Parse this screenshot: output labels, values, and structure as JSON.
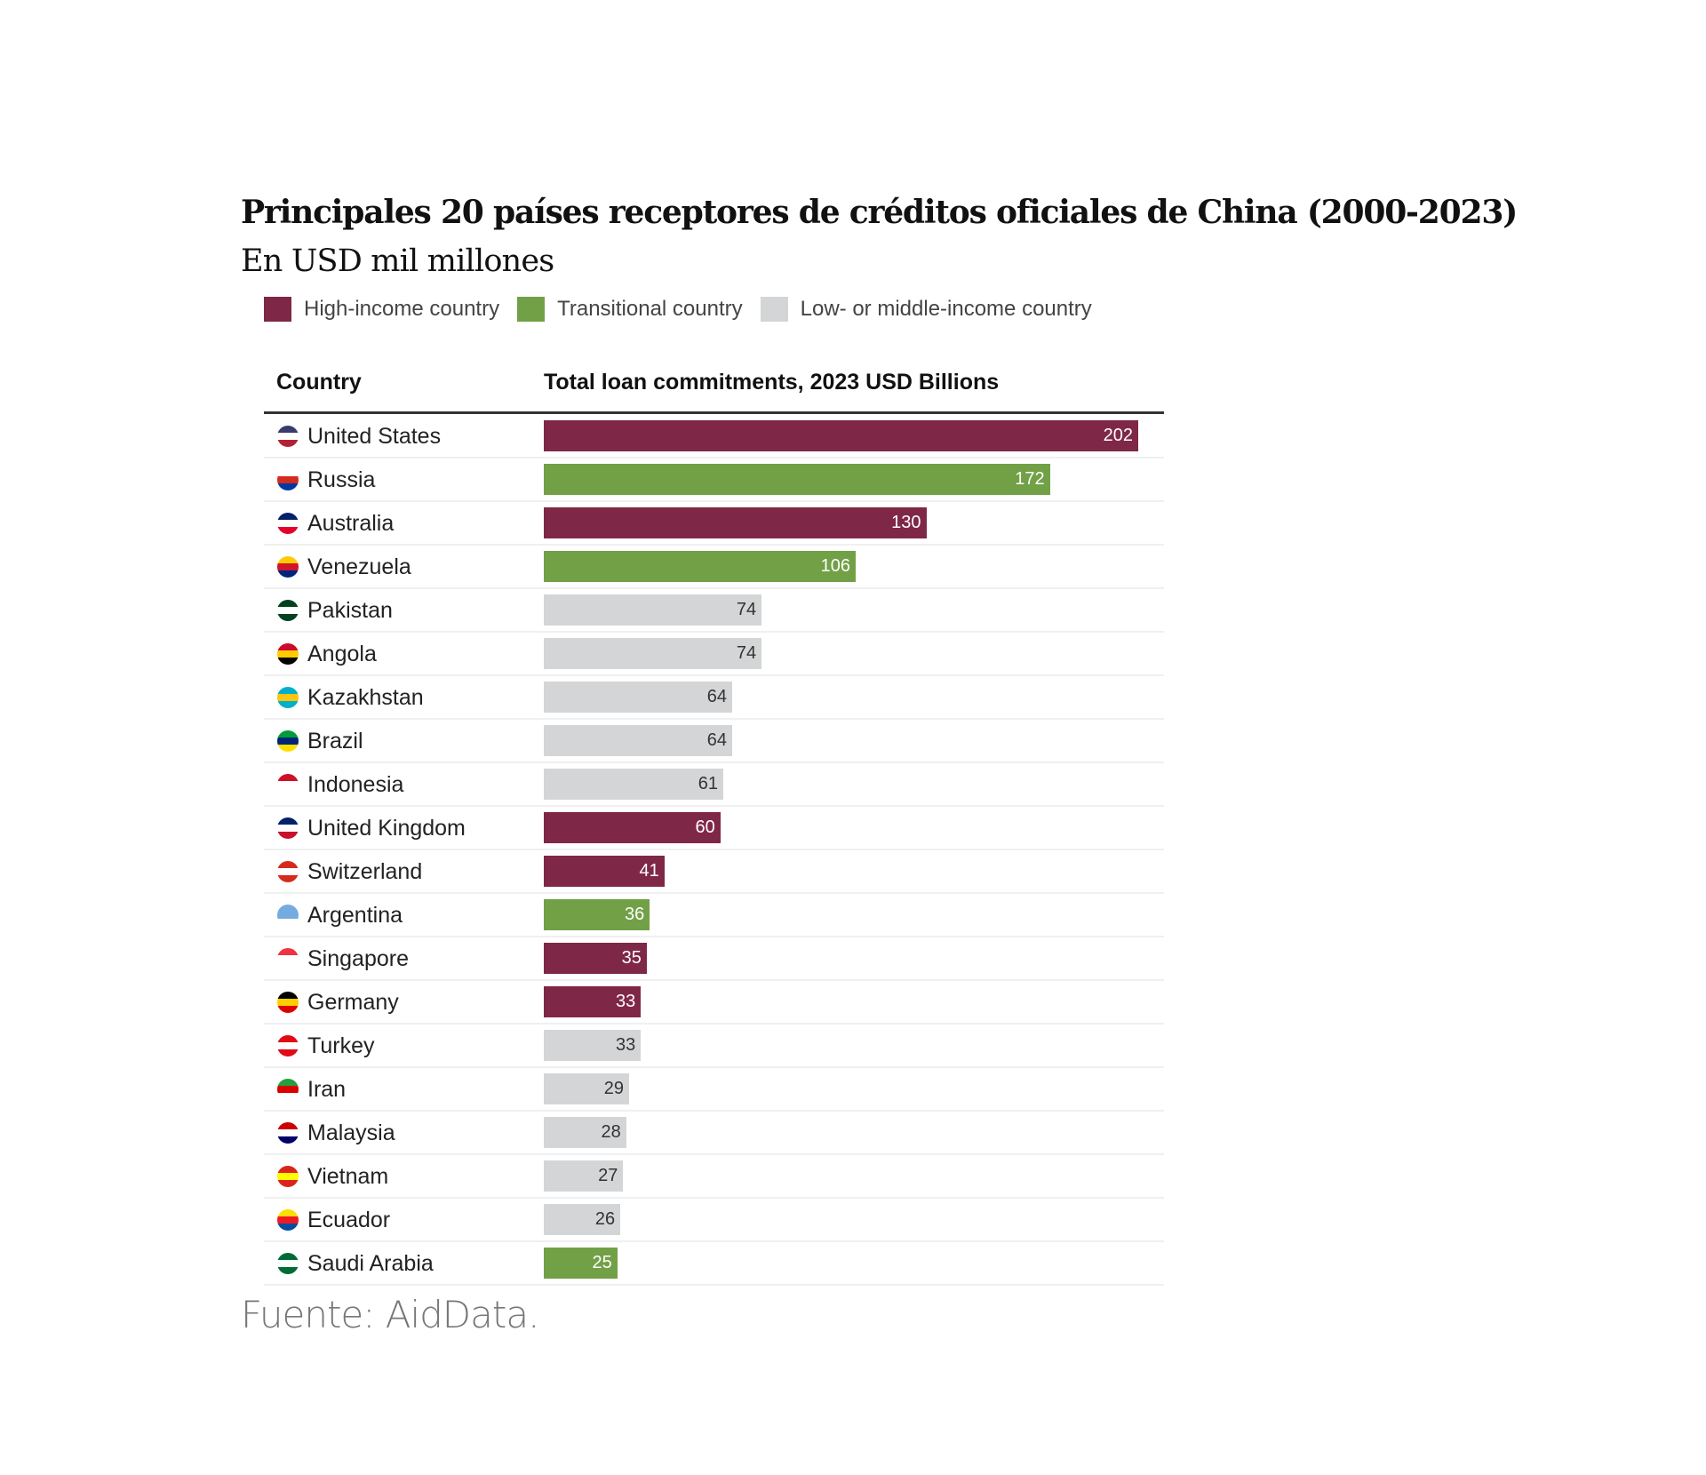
{
  "chart_data": {
    "type": "bar",
    "orientation": "horizontal",
    "title": "Principales 20 países receptores de créditos oficiales de China (2000-2023)",
    "subtitle": "En USD mil millones",
    "column_headers": {
      "country": "Country",
      "value": "Total loan commitments, 2023 USD Billions"
    },
    "legend": [
      {
        "key": "high",
        "label": "High-income country",
        "color": "#7f2747"
      },
      {
        "key": "transitional",
        "label": "Transitional country",
        "color": "#72a046"
      },
      {
        "key": "low",
        "label": "Low- or middle-income country",
        "color": "#d4d5d6"
      }
    ],
    "legend_position": "top-left",
    "grid": false,
    "xlim": [
      0,
      202
    ],
    "categories": [
      "United States",
      "Russia",
      "Australia",
      "Venezuela",
      "Pakistan",
      "Angola",
      "Kazakhstan",
      "Brazil",
      "Indonesia",
      "United Kingdom",
      "Switzerland",
      "Argentina",
      "Singapore",
      "Germany",
      "Turkey",
      "Iran",
      "Malaysia",
      "Vietnam",
      "Ecuador",
      "Saudi Arabia"
    ],
    "values": [
      202,
      172,
      130,
      106,
      74,
      74,
      64,
      64,
      61,
      60,
      41,
      36,
      35,
      33,
      33,
      29,
      28,
      27,
      26,
      25
    ],
    "groups": [
      "high",
      "transitional",
      "high",
      "transitional",
      "low",
      "low",
      "low",
      "low",
      "low",
      "high",
      "high",
      "transitional",
      "high",
      "high",
      "low",
      "low",
      "low",
      "low",
      "low",
      "transitional"
    ],
    "flag_colors": [
      [
        "#3c3b6e",
        "#b22234",
        "#ffffff"
      ],
      [
        "#ffffff",
        "#0039a6",
        "#d52b1e"
      ],
      [
        "#012169",
        "#e4002b",
        "#ffffff"
      ],
      [
        "#ffcc00",
        "#00247d",
        "#cf142b"
      ],
      [
        "#01411c",
        "#01411c",
        "#ffffff"
      ],
      [
        "#cc092f",
        "#000000",
        "#ffcb00"
      ],
      [
        "#00afca",
        "#00afca",
        "#fec50c"
      ],
      [
        "#009c3b",
        "#ffdf00",
        "#002776"
      ],
      [
        "#ce1126",
        "#ffffff",
        "#ffffff"
      ],
      [
        "#012169",
        "#c8102e",
        "#ffffff"
      ],
      [
        "#d52b1e",
        "#d52b1e",
        "#ffffff"
      ],
      [
        "#74acdf",
        "#ffffff",
        "#74acdf"
      ],
      [
        "#ef3340",
        "#ffffff",
        "#ffffff"
      ],
      [
        "#000000",
        "#dd0000",
        "#ffce00"
      ],
      [
        "#e30a17",
        "#e30a17",
        "#ffffff"
      ],
      [
        "#239f40",
        "#ffffff",
        "#da0000"
      ],
      [
        "#cc0001",
        "#010066",
        "#ffffff"
      ],
      [
        "#da251d",
        "#da251d",
        "#ffff00"
      ],
      [
        "#ffdd00",
        "#034ea2",
        "#ed1c24"
      ],
      [
        "#006c35",
        "#006c35",
        "#ffffff"
      ]
    ]
  },
  "source": "Fuente: AidData."
}
